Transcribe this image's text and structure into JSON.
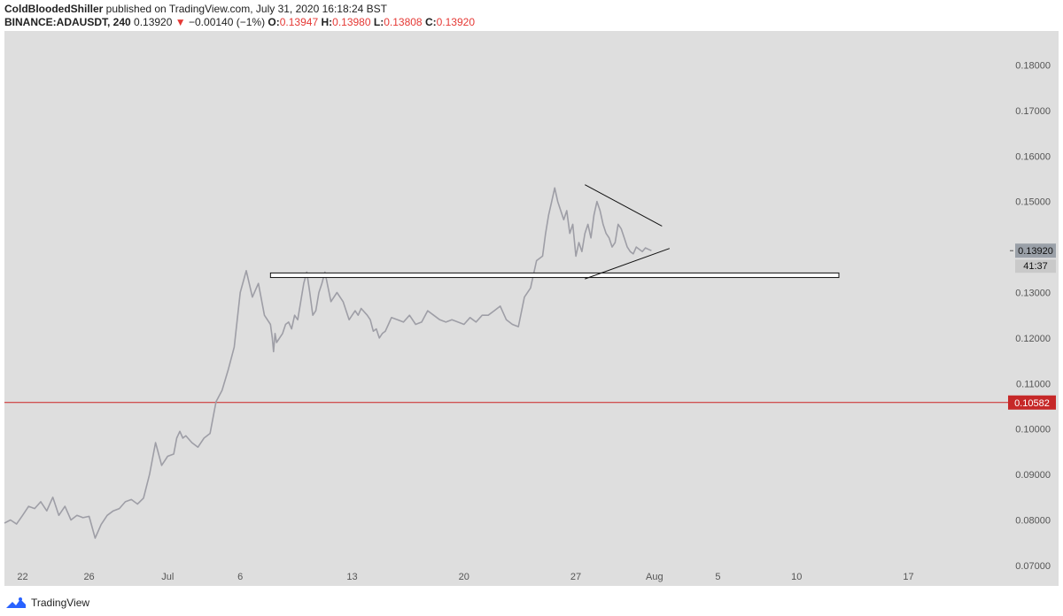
{
  "header": {
    "author": "ColdBloodedShiller",
    "published_text": " published on TradingView.com, July 31, 2020 16:18:24 BST",
    "symbol": "BINANCE:ADAUSDT, 240",
    "last_price": "0.13920",
    "change_arrow": "▼",
    "change": "−0.00140 (−1%)",
    "open_label": "O:",
    "open": "0.13947",
    "high_label": "H:",
    "high": "0.13980",
    "low_label": "L:",
    "low": "0.13808",
    "close_label": "C:",
    "close": "0.13920"
  },
  "footer": {
    "brand": "TradingView"
  },
  "colors": {
    "pane_bg": "#dedede",
    "price_line": "#9e9ea6",
    "support_line": "#cc2222",
    "trend_line": "#111111",
    "price_badge_bg": "#9aa0a8",
    "support_badge_bg": "#c62828",
    "timer_bg": "#c9c9c9"
  },
  "chart_data": {
    "type": "line",
    "title": "BINANCE:ADAUSDT, 240",
    "ylim": [
      0.0655,
      0.1875
    ],
    "y_ticks": [
      "0.07000",
      "0.08000",
      "0.09000",
      "0.10000",
      "0.11000",
      "0.12000",
      "0.13000",
      "0.14000",
      "0.15000",
      "0.16000",
      "0.17000",
      "0.18000"
    ],
    "y_tick_values": [
      0.07,
      0.08,
      0.09,
      0.1,
      0.11,
      0.12,
      0.13,
      0.14,
      0.15,
      0.16,
      0.17,
      0.18
    ],
    "x_range": [
      0,
      220
    ],
    "x_ticks": [
      {
        "label": "22",
        "t": 6
      },
      {
        "label": "26",
        "t": 28
      },
      {
        "label": "Jul",
        "t": 54
      },
      {
        "label": "6",
        "t": 78
      },
      {
        "label": "13",
        "t": 115
      },
      {
        "label": "20",
        "t": 152
      },
      {
        "label": "27",
        "t": 189
      },
      {
        "label": "Aug",
        "t": 215
      },
      {
        "label": "5",
        "t": 236
      },
      {
        "label": "10",
        "t": 262
      },
      {
        "label": "17",
        "t": 299
      }
    ],
    "series": [
      {
        "name": "ADAUSDT close",
        "t": [
          0,
          2,
          4,
          6,
          8,
          10,
          12,
          14,
          16,
          18,
          20,
          22,
          24,
          26,
          28,
          30,
          32,
          34,
          36,
          38,
          40,
          42,
          44,
          46,
          48,
          50,
          52,
          54,
          56,
          57,
          58,
          59,
          60,
          62,
          64,
          66,
          68,
          70,
          72,
          74,
          76,
          78,
          80,
          82,
          84,
          86,
          88,
          88.6,
          89,
          89.5,
          90,
          91,
          92,
          93,
          94,
          95,
          96,
          97,
          98,
          99,
          100,
          101,
          102,
          103,
          104,
          105,
          106,
          108,
          110,
          112,
          114,
          116,
          117,
          118,
          120,
          121,
          122,
          123,
          124,
          125,
          126,
          127,
          128,
          130,
          132,
          134,
          136,
          138,
          140,
          142,
          144,
          146,
          148,
          150,
          152,
          154,
          156,
          158,
          160,
          162,
          164,
          166,
          168,
          170,
          172,
          174,
          176,
          178,
          179,
          180,
          181,
          182,
          183,
          184,
          185,
          186,
          187,
          188,
          189,
          190,
          191,
          192,
          193,
          194,
          195,
          196,
          197,
          198,
          199,
          200,
          201,
          202,
          203,
          204,
          205,
          206,
          207,
          208,
          209,
          210,
          211,
          212,
          213,
          214
        ],
        "values": [
          0.0793,
          0.08,
          0.0791,
          0.081,
          0.083,
          0.0825,
          0.084,
          0.082,
          0.085,
          0.081,
          0.083,
          0.08,
          0.081,
          0.0805,
          0.0808,
          0.076,
          0.079,
          0.081,
          0.082,
          0.0825,
          0.084,
          0.0845,
          0.0835,
          0.0848,
          0.09,
          0.097,
          0.092,
          0.094,
          0.0945,
          0.098,
          0.0995,
          0.098,
          0.0985,
          0.097,
          0.096,
          0.098,
          0.099,
          0.106,
          0.1085,
          0.113,
          0.118,
          0.13,
          0.1348,
          0.129,
          0.132,
          0.125,
          0.123,
          0.12,
          0.117,
          0.121,
          0.119,
          0.12,
          0.121,
          0.123,
          0.1235,
          0.122,
          0.125,
          0.124,
          0.128,
          0.132,
          0.1345,
          0.13,
          0.125,
          0.126,
          0.13,
          0.132,
          0.1345,
          0.128,
          0.13,
          0.128,
          0.124,
          0.126,
          0.125,
          0.1265,
          0.125,
          0.124,
          0.1215,
          0.122,
          0.12,
          0.121,
          0.1215,
          0.123,
          0.1245,
          0.124,
          0.1235,
          0.125,
          0.123,
          0.1235,
          0.126,
          0.125,
          0.124,
          0.1235,
          0.124,
          0.1235,
          0.123,
          0.1245,
          0.1235,
          0.125,
          0.125,
          0.126,
          0.127,
          0.124,
          0.123,
          0.1225,
          0.129,
          0.131,
          0.137,
          0.138,
          0.143,
          0.147,
          0.15,
          0.153,
          0.15,
          0.148,
          0.146,
          0.148,
          0.143,
          0.145,
          0.138,
          0.141,
          0.139,
          0.143,
          0.145,
          0.142,
          0.147,
          0.15,
          0.148,
          0.145,
          0.143,
          0.142,
          0.14,
          0.141,
          0.145,
          0.144,
          0.142,
          0.14,
          0.139,
          0.1385,
          0.14,
          0.1395,
          0.139,
          0.1398,
          0.1395,
          0.1392
        ]
      }
    ],
    "horizontal_lines": [
      {
        "name": "support",
        "value": 0.10582,
        "label": "0.10582"
      }
    ],
    "resistance_zone": {
      "t_start": 88,
      "t_end": 276,
      "y_low": 0.1333,
      "y_high": 0.1343
    },
    "triangle": {
      "upper": [
        {
          "t": 192,
          "v": 0.1537
        },
        {
          "t": 217.5,
          "v": 0.1446
        }
      ],
      "lower": [
        {
          "t": 192,
          "v": 0.133
        },
        {
          "t": 220,
          "v": 0.1397
        }
      ]
    },
    "last_price_label": "0.13920",
    "last_price_value": 0.1392,
    "countdown": "41:37"
  }
}
